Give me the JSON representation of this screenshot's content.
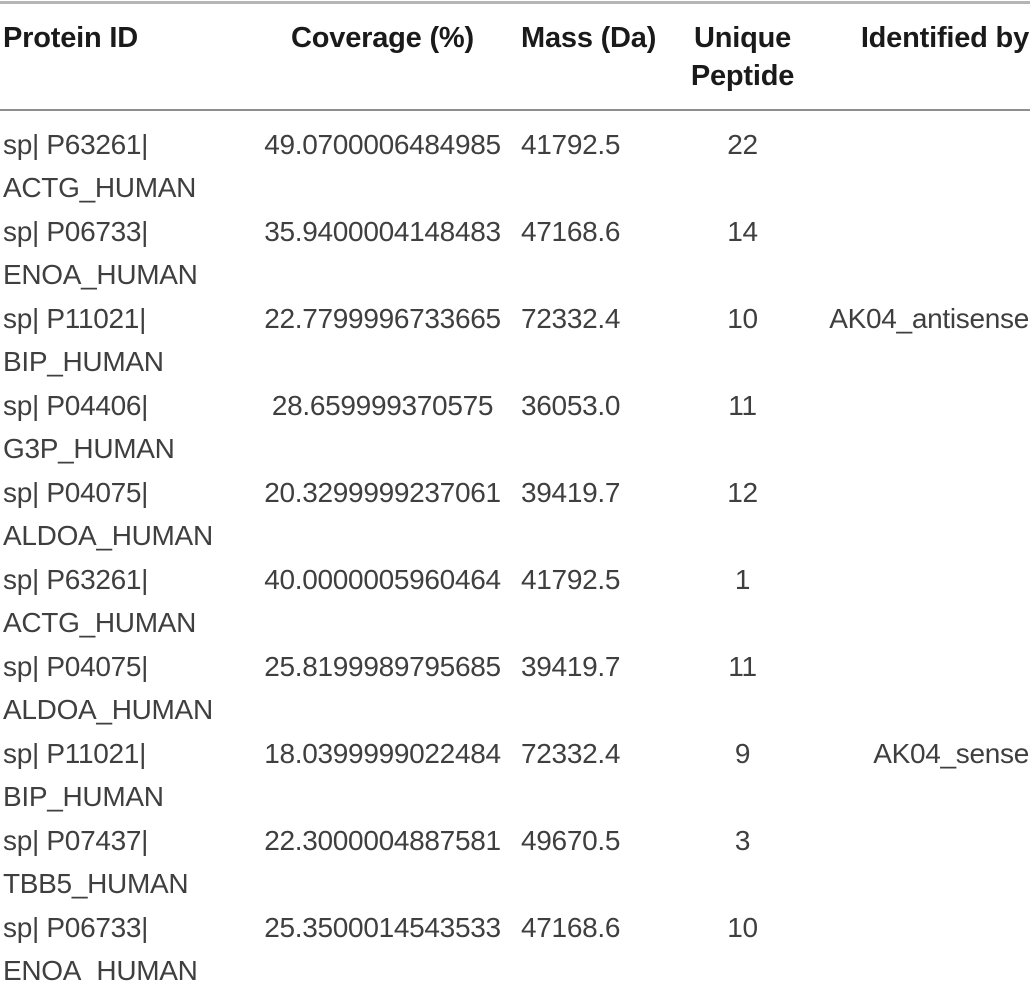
{
  "table": {
    "columns": [
      {
        "label": "Protein ID",
        "align": "left"
      },
      {
        "label": "Coverage (%)",
        "align": "center"
      },
      {
        "label": "Mass (Da)",
        "align": "left"
      },
      {
        "label": "Unique Peptide",
        "align": "center"
      },
      {
        "label": "Identified by",
        "align": "right"
      }
    ],
    "rows": [
      {
        "protein_id_line1": "sp| P63261|",
        "protein_id_line2": "ACTG_HUMAN",
        "coverage": "49.0700006484985",
        "mass": "41792.5",
        "unique_peptide": "22",
        "identified_by": ""
      },
      {
        "protein_id_line1": "sp| P06733|",
        "protein_id_line2": "ENOA_HUMAN",
        "coverage": "35.9400004148483",
        "mass": "47168.6",
        "unique_peptide": "14",
        "identified_by": ""
      },
      {
        "protein_id_line1": "sp| P11021|",
        "protein_id_line2": "BIP_HUMAN",
        "coverage": "22.7799996733665",
        "mass": "72332.4",
        "unique_peptide": "10",
        "identified_by": "AK04_antisense"
      },
      {
        "protein_id_line1": "sp| P04406|",
        "protein_id_line2": "G3P_HUMAN",
        "coverage": "28.659999370575",
        "mass": "36053.0",
        "unique_peptide": "11",
        "identified_by": ""
      },
      {
        "protein_id_line1": "sp| P04075|",
        "protein_id_line2": "ALDOA_HUMAN",
        "coverage": "20.3299999237061",
        "mass": "39419.7",
        "unique_peptide": "12",
        "identified_by": ""
      },
      {
        "protein_id_line1": "sp| P63261|",
        "protein_id_line2": "ACTG_HUMAN",
        "coverage": "40.0000005960464",
        "mass": "41792.5",
        "unique_peptide": "1",
        "identified_by": ""
      },
      {
        "protein_id_line1": "sp| P04075|",
        "protein_id_line2": "ALDOA_HUMAN",
        "coverage": "25.8199989795685",
        "mass": "39419.7",
        "unique_peptide": "11",
        "identified_by": ""
      },
      {
        "protein_id_line1": "sp| P11021|",
        "protein_id_line2": "BIP_HUMAN",
        "coverage": "18.0399999022484",
        "mass": "72332.4",
        "unique_peptide": "9",
        "identified_by": "AK04_sense"
      },
      {
        "protein_id_line1": "sp| P07437|",
        "protein_id_line2": "TBB5_HUMAN",
        "coverage": "22.3000004887581",
        "mass": "49670.5",
        "unique_peptide": "3",
        "identified_by": ""
      },
      {
        "protein_id_line1": "sp| P06733|",
        "protein_id_line2": "ENOA_HUMAN",
        "coverage": "25.3500014543533",
        "mass": "47168.6",
        "unique_peptide": "10",
        "identified_by": ""
      }
    ]
  },
  "colors": {
    "background": "#ffffff",
    "text_header": "#1a1a1a",
    "text_body": "#3f3f3f",
    "rule_top": "#b5b5b5",
    "rule_header": "#8f8f8f"
  }
}
